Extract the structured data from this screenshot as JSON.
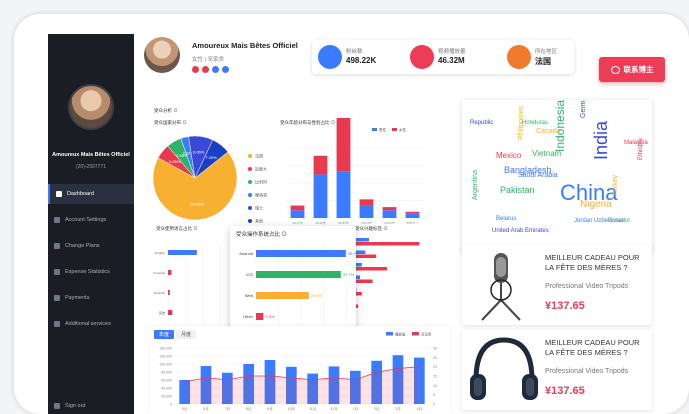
{
  "sidebar": {
    "profile_name": "Amoureux Mais Bêtes Officiel",
    "profile_id": "(20)-2507771",
    "items": [
      {
        "label": "Dashboard",
        "active": true
      },
      {
        "label": "Account Settings",
        "active": false
      },
      {
        "label": "Change Plans",
        "active": false
      },
      {
        "label": "Expense Statistics",
        "active": false
      },
      {
        "label": "Payments",
        "active": false
      },
      {
        "label": "Additional services",
        "active": false
      }
    ],
    "signout": "Sign out"
  },
  "header": {
    "name": "Amoureux Mais Bêtes Officiel",
    "subtitle": "女性 | 宠家类",
    "social_colors": [
      "#e8394f",
      "#e8394f",
      "#3a7bff",
      "#3a7bff"
    ]
  },
  "stats": [
    {
      "label": "粉丝数",
      "value": "498.22K",
      "color": "#3a7bff"
    },
    {
      "label": "视频播放量",
      "value": "46.32M",
      "color": "#ec3c56"
    },
    {
      "label": "所在地区",
      "value": "法国",
      "color": "#f27a2c"
    }
  ],
  "contact_button": "联系博主",
  "section_title": "受众分析 ⊙",
  "pie_panel": {
    "title": "受众国家分布 ⊙",
    "chart_data": {
      "type": "pie",
      "values": [
        66.06,
        5.55,
        5.55,
        2.92,
        9.06,
        7.09
      ],
      "labels": [
        "66.06%",
        "5.55%",
        "5.55%",
        "2.92%",
        "9.06%",
        "7.09%"
      ],
      "colors": [
        "#f7b030",
        "#e8394f",
        "#2fb36b",
        "#3a7bff",
        "#3a49d8",
        "#1a3fc4"
      ],
      "legend": [
        "法国",
        "加拿大",
        "比利时",
        "摩洛哥",
        "瑞士",
        "其他"
      ]
    }
  },
  "age_panel": {
    "title": "受众年龄分布与性别占比 ⊙",
    "legend": [
      "男性",
      "女性"
    ],
    "chart_data": {
      "type": "bar",
      "categories": [
        "13-17岁",
        "18-24岁",
        "25-34岁",
        "35-44岁",
        "45-54岁",
        "55岁以上"
      ],
      "series": [
        {
          "name": "男性",
          "values": [
            5,
            28,
            30,
            8,
            5,
            3
          ]
        },
        {
          "name": "女性",
          "values": [
            3,
            12,
            40,
            4,
            2,
            1
          ]
        }
      ],
      "ylim": [
        0,
        45
      ]
    }
  },
  "lang_panel": {
    "title": "受众使用语言占比 ⊙",
    "chart_data": {
      "type": "bar",
      "categories": [
        "English",
        "Français",
        "Deutsch",
        "其他"
      ],
      "values": [
        33,
        4,
        2,
        5
      ],
      "xticks": [
        "0%",
        "20%",
        "40%",
        "60%",
        "80%"
      ]
    }
  },
  "os_panel": {
    "title": "受众操作系统占比 ⊙",
    "chart_data": {
      "type": "bar",
      "categories": [
        "Android",
        "iOS",
        "Web",
        "Other"
      ],
      "values": [
        39.9,
        37.7,
        23.5,
        3.3
      ],
      "labels": [
        "39.9%",
        "37.7%",
        "23.5%",
        "3.3%"
      ],
      "colors": [
        "#3a7bff",
        "#2fb36b",
        "#f7b030",
        "#e8394f"
      ],
      "xticks": [
        "0%",
        "10%",
        "20%",
        "30%",
        "40%"
      ]
    }
  },
  "tags_panel": {
    "title": "受众兴趣标签 ⊙",
    "chart_data": {
      "type": "bar",
      "categories": [
        "宠物",
        "生活",
        "娱乐",
        "旅游",
        "美食",
        "时尚",
        "其他"
      ],
      "series": [
        {
          "name": "男性",
          "values": [
            10,
            8,
            6,
            5,
            3,
            2,
            1
          ]
        },
        {
          "name": "女性",
          "values": [
            38,
            14,
            20,
            12,
            6,
            4,
            2
          ]
        }
      ]
    }
  },
  "trend_panel": {
    "tabs": [
      "年度",
      "月度"
    ],
    "legend": [
      "播放量",
      "互动率"
    ],
    "chart_data": {
      "type": "bar",
      "categories": [
        "5月",
        "6月",
        "7月",
        "8月",
        "9月",
        "10月",
        "11月",
        "12月",
        "1月",
        "2月",
        "3月",
        "4月"
      ],
      "series": [
        {
          "name": "播放量",
          "values": [
            60000,
            95000,
            78000,
            100000,
            110000,
            93000,
            76000,
            94000,
            83000,
            108000,
            122000,
            116000
          ]
        },
        {
          "name": "互动率",
          "values": [
            12,
            14,
            13,
            15,
            15,
            14,
            13,
            14,
            13,
            17,
            19,
            20
          ]
        }
      ],
      "yticks": [
        "0",
        "20,000",
        "40,000",
        "60,000",
        "80,000",
        "100,000",
        "120,000",
        "140,000"
      ],
      "y2ticks": [
        "0",
        "5",
        "10",
        "15",
        "20",
        "25",
        "30"
      ]
    }
  },
  "wordcloud": {
    "words": [
      {
        "text": "China",
        "size": 22,
        "color": "#3a7bff"
      },
      {
        "text": "India",
        "size": 18,
        "color": "#3a49d8"
      },
      {
        "text": "Indonesia",
        "size": 12,
        "color": "#2fb36b"
      },
      {
        "text": "Nigeria",
        "size": 10,
        "color": "#f7b030"
      },
      {
        "text": "Bangladesh",
        "size": 9,
        "color": "#3a7bff"
      },
      {
        "text": "Pakistan",
        "size": 9,
        "color": "#2fb36b"
      },
      {
        "text": "Mexico",
        "size": 8,
        "color": "#e8394f"
      },
      {
        "text": "Germany",
        "size": 7,
        "color": "#3a49d8"
      },
      {
        "text": "Philippines",
        "size": 7,
        "color": "#f7b030"
      },
      {
        "text": "Vietnam",
        "size": 8,
        "color": "#2fb36b"
      },
      {
        "text": "Canada",
        "size": 7,
        "color": "#f7b030"
      },
      {
        "text": "Saudi Arabia",
        "size": 7,
        "color": "#3a7bff"
      },
      {
        "text": "Argentina",
        "size": 7,
        "color": "#2fb36b"
      },
      {
        "text": "Jordan Uzbekistan",
        "size": 6,
        "color": "#3a7bff"
      },
      {
        "text": "Ecuador",
        "size": 6,
        "color": "#2fb36b"
      },
      {
        "text": "United Arab Emirates",
        "size": 6,
        "color": "#3a49d8"
      },
      {
        "text": "Belarus",
        "size": 6,
        "color": "#3a7bff"
      },
      {
        "text": "Malaysia",
        "size": 6,
        "color": "#e8394f"
      },
      {
        "text": "Honduras",
        "size": 6,
        "color": "#2fb36b"
      },
      {
        "text": "Republic",
        "size": 6,
        "color": "#3a49d8"
      },
      {
        "text": "Turkey",
        "size": 7,
        "color": "#f7b030"
      },
      {
        "text": "Ethiopia",
        "size": 6,
        "color": "#e8394f"
      }
    ]
  },
  "products": [
    {
      "title": "MEILLEUR CADEAU POUR LA FÊTE DES MÈRES ?",
      "subtitle": "Professional Video Tripods",
      "price": "¥137.65"
    },
    {
      "title": "MEILLEUR CADEAU POUR LA FÊTE DES MÈRES ?",
      "subtitle": "Professional Video Tripods",
      "price": "¥137.65"
    }
  ]
}
